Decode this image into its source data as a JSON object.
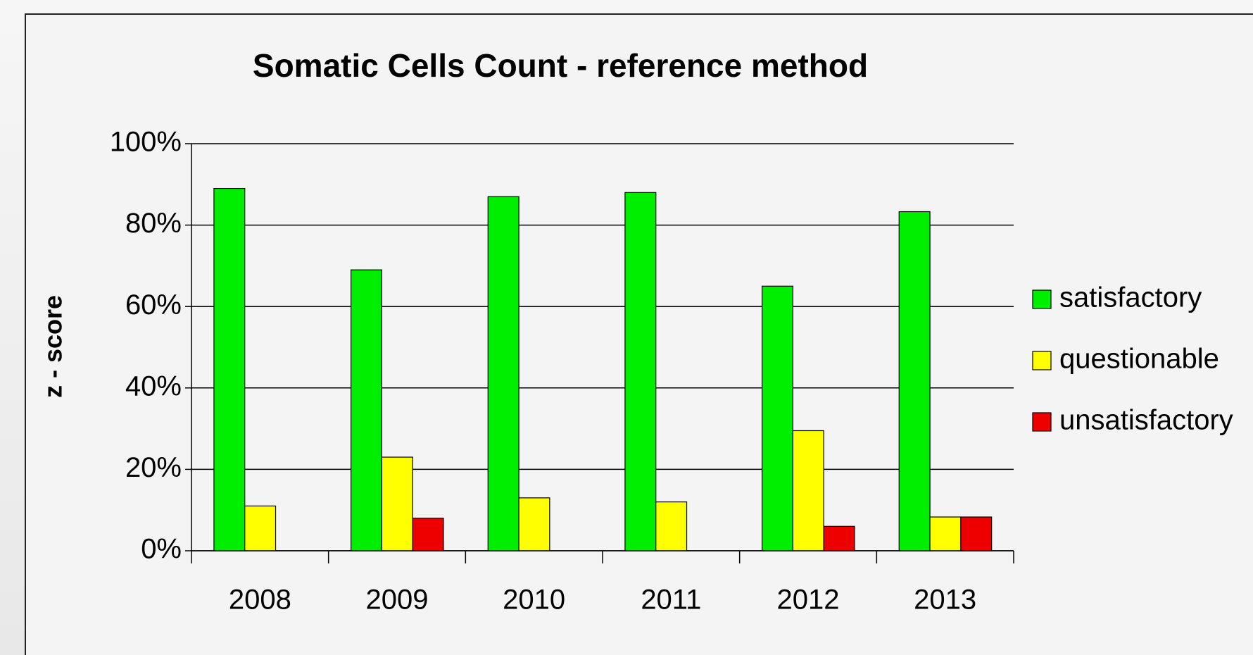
{
  "chart_data": {
    "type": "bar",
    "title": "Somatic Cells Count - reference method",
    "y_label": "z - score",
    "categories": [
      "2008",
      "2009",
      "2010",
      "2011",
      "2012",
      "2013"
    ],
    "series": [
      {
        "name": "satisfactory",
        "color": "#00ee00",
        "values": [
          89,
          69,
          87,
          88,
          65,
          83.3
        ]
      },
      {
        "name": "questionable",
        "color": "#ffff00",
        "values": [
          11,
          23,
          13,
          12,
          29.5,
          8.3
        ]
      },
      {
        "name": "unsatisfactory",
        "color": "#ee0000",
        "values": [
          0,
          8,
          0,
          0,
          6,
          8.3
        ]
      }
    ],
    "ylim": [
      0,
      100
    ],
    "yticks": [
      {
        "value": 0,
        "label": "0%"
      },
      {
        "value": 20,
        "label": "20%"
      },
      {
        "value": 40,
        "label": "40%"
      },
      {
        "value": 60,
        "label": "60%"
      },
      {
        "value": 80,
        "label": "80%"
      },
      {
        "value": 100,
        "label": "100%"
      }
    ],
    "grid": true,
    "legend": "right"
  }
}
